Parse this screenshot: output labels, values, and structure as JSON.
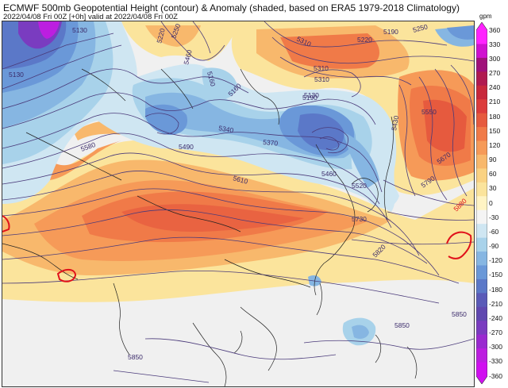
{
  "header": {
    "title": "ECMWF 500mb Geopotential Height (contour) & Anomaly (shaded, based on ERA5 1979-2018 Climatology)",
    "subtitle": "2022/04/08 Fri 00Z [+0h] valid at 2022/04/08 Fri 00Z"
  },
  "colorbar": {
    "unit": "gpm",
    "ticks": [
      "360",
      "330",
      "300",
      "270",
      "240",
      "210",
      "180",
      "150",
      "120",
      "90",
      "60",
      "30",
      "0",
      "-30",
      "-60",
      "-90",
      "-120",
      "-150",
      "-180",
      "-210",
      "-240",
      "-270",
      "-300",
      "-330",
      "-360"
    ],
    "colors": [
      "#ff22ff",
      "#d010d0",
      "#a0107a",
      "#b01a50",
      "#c8283c",
      "#dc3c3c",
      "#e65a3e",
      "#f07a48",
      "#f69a58",
      "#f8b86c",
      "#fad282",
      "#fbe49c",
      "#fff4c4",
      "#f4f4f4",
      "#cfe6f2",
      "#a8d2ea",
      "#86b6e2",
      "#6a98d8",
      "#5b78c8",
      "#5a5ab8",
      "#6048b0",
      "#7a3cc0",
      "#9a2ad0",
      "#bc1ee0",
      "#d010f0"
    ]
  },
  "contour_labels": [
    "5130",
    "5250",
    "5220",
    "5310",
    "5190",
    "5250",
    "5460",
    "5310",
    "5160",
    "5130",
    "5310",
    "5220",
    "5160",
    "5190",
    "5130",
    "5430",
    "5550",
    "5580",
    "5490",
    "5340",
    "5370",
    "5610",
    "5460",
    "5520",
    "5670",
    "5730",
    "5790",
    "5880",
    "5820",
    "5850",
    "5850",
    "5850"
  ],
  "colors": {
    "contour": "#4a3a7a",
    "high_5880": "#e0101a",
    "land_edge": "#222222"
  }
}
